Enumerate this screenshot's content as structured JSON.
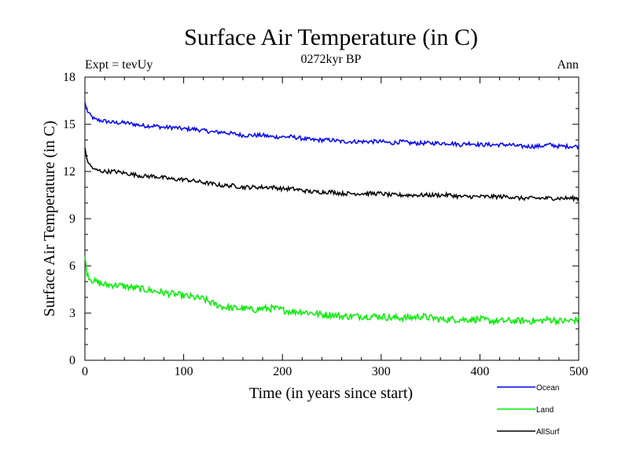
{
  "chart_data": {
    "type": "line",
    "title": "Surface Air Temperature (in C)",
    "subtitle": "0272kyr BP",
    "left_label": "Expt = tevUy",
    "right_label": "Ann",
    "xlabel": "Time (in years since start)",
    "ylabel": "Surface Air Temperature (in C)",
    "xlim": [
      0,
      500
    ],
    "ylim": [
      0,
      18
    ],
    "x_ticks": [
      "0",
      "100",
      "200",
      "300",
      "400",
      "500"
    ],
    "y_ticks": [
      "0",
      "3",
      "6",
      "9",
      "12",
      "15",
      "18"
    ],
    "grid": false,
    "legend_position": "bottom-right",
    "x": [
      0,
      2,
      5,
      10,
      20,
      30,
      40,
      50,
      60,
      70,
      80,
      90,
      100,
      110,
      120,
      130,
      140,
      150,
      160,
      170,
      180,
      190,
      200,
      210,
      220,
      230,
      240,
      250,
      260,
      270,
      280,
      290,
      300,
      310,
      320,
      330,
      340,
      350,
      360,
      370,
      380,
      390,
      400,
      410,
      420,
      430,
      440,
      450,
      460,
      470,
      480,
      490,
      500
    ],
    "series": [
      {
        "name": "Ocean",
        "color": "#0000ff",
        "values": [
          16.4,
          15.9,
          15.6,
          15.3,
          15.2,
          15.1,
          15.1,
          15.0,
          14.9,
          14.9,
          14.8,
          14.8,
          14.7,
          14.7,
          14.6,
          14.5,
          14.5,
          14.4,
          14.3,
          14.3,
          14.3,
          14.2,
          14.2,
          14.2,
          14.1,
          14.0,
          14.0,
          14.0,
          13.9,
          13.9,
          13.9,
          13.9,
          13.9,
          13.8,
          13.9,
          13.8,
          13.8,
          13.8,
          13.8,
          13.8,
          13.7,
          13.8,
          13.7,
          13.7,
          13.7,
          13.7,
          13.6,
          13.6,
          13.6,
          13.7,
          13.6,
          13.6,
          13.6
        ]
      },
      {
        "name": "Land",
        "color": "#00ee00",
        "values": [
          6.6,
          5.6,
          5.2,
          5.0,
          4.8,
          4.8,
          4.7,
          4.6,
          4.5,
          4.4,
          4.3,
          4.2,
          4.1,
          4.0,
          3.9,
          3.6,
          3.4,
          3.3,
          3.3,
          3.2,
          3.3,
          3.3,
          3.2,
          3.1,
          3.1,
          3.0,
          2.9,
          2.9,
          2.8,
          2.8,
          2.8,
          2.8,
          2.8,
          2.7,
          2.7,
          2.7,
          2.8,
          2.7,
          2.6,
          2.6,
          2.6,
          2.6,
          2.6,
          2.5,
          2.5,
          2.5,
          2.5,
          2.5,
          2.5,
          2.6,
          2.5,
          2.5,
          2.6
        ]
      },
      {
        "name": "AllSurf",
        "color": "#000000",
        "values": [
          13.5,
          12.8,
          12.4,
          12.1,
          12.0,
          12.0,
          11.9,
          11.8,
          11.7,
          11.7,
          11.6,
          11.5,
          11.5,
          11.4,
          11.3,
          11.2,
          11.1,
          11.1,
          11.0,
          11.0,
          11.0,
          11.0,
          10.9,
          10.9,
          10.8,
          10.7,
          10.7,
          10.7,
          10.6,
          10.6,
          10.6,
          10.6,
          10.6,
          10.5,
          10.5,
          10.5,
          10.5,
          10.5,
          10.5,
          10.5,
          10.4,
          10.4,
          10.4,
          10.4,
          10.4,
          10.4,
          10.3,
          10.3,
          10.3,
          10.3,
          10.3,
          10.3,
          10.3
        ]
      }
    ]
  }
}
